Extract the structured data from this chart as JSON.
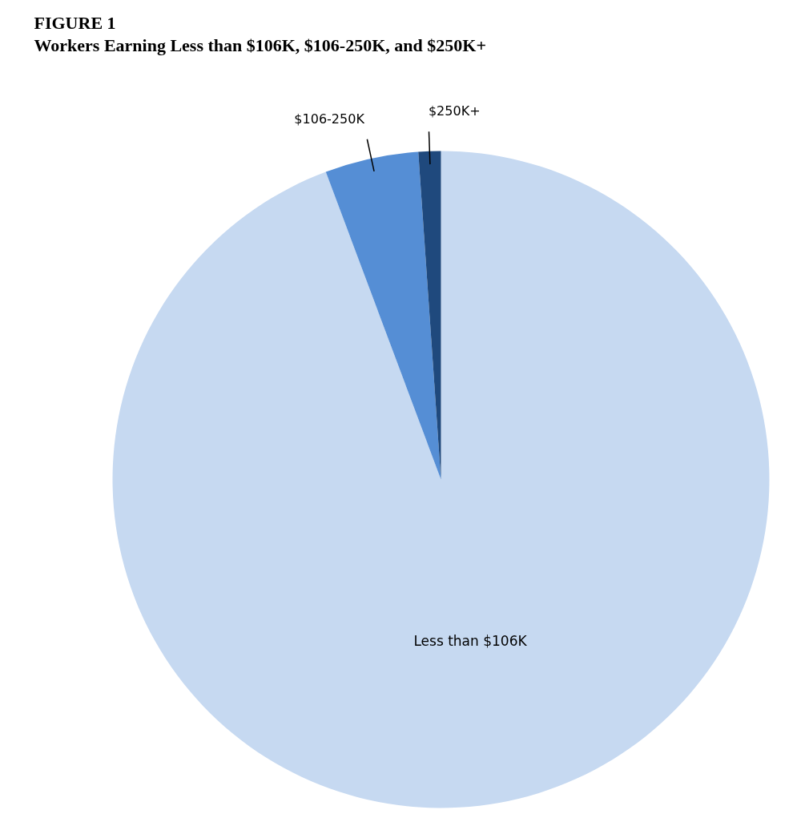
{
  "chart_data": {
    "type": "pie",
    "title": "FIGURE 1",
    "subtitle": "Workers Earning Less than $106K, $106-250K, and $250K+",
    "categories": [
      "Less than $106K",
      "$106-250K",
      "$250K+"
    ],
    "values": [
      94.3,
      4.6,
      1.1
    ],
    "colors": [
      "#c6d9f1",
      "#558ed5",
      "#1f497d"
    ]
  }
}
